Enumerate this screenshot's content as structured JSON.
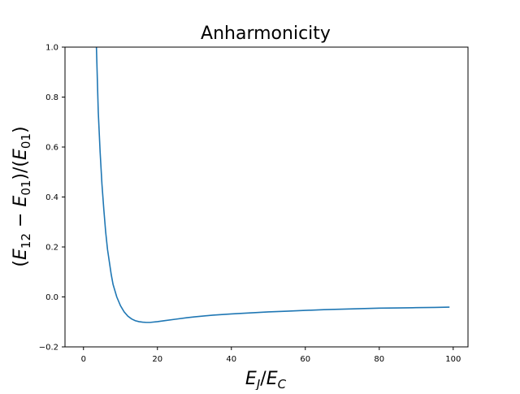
{
  "chart_data": {
    "type": "line",
    "title": "Anharmonicity",
    "xlabel": "E_J/E_C",
    "ylabel": "(E_12 − E_01)/(E_01)",
    "xlim": [
      -5,
      104
    ],
    "ylim": [
      -0.2,
      1.0
    ],
    "x_ticks": [
      0,
      20,
      40,
      60,
      80,
      100
    ],
    "y_ticks": [
      -0.2,
      0.0,
      0.2,
      0.4,
      0.6,
      0.8,
      1.0
    ],
    "x_tick_labels": [
      "0",
      "20",
      "40",
      "60",
      "80",
      "100"
    ],
    "y_tick_labels": [
      "−0.2",
      "0.0",
      "0.2",
      "0.4",
      "0.6",
      "0.8",
      "1.0"
    ],
    "grid": false,
    "line_color": "#1f77b4",
    "series": [
      {
        "x": [
          3.5,
          4,
          4.5,
          5,
          5.5,
          6,
          6.5,
          7,
          7.5,
          8,
          9,
          10,
          11,
          12,
          13,
          14,
          15,
          16,
          17,
          18,
          20,
          22,
          25,
          28,
          30,
          35,
          40,
          45,
          50,
          55,
          60,
          65,
          70,
          75,
          80,
          85,
          90,
          95,
          99
        ],
        "values": [
          1.0,
          0.74,
          0.58,
          0.45,
          0.35,
          0.26,
          0.19,
          0.14,
          0.09,
          0.05,
          0.0,
          -0.035,
          -0.06,
          -0.077,
          -0.088,
          -0.095,
          -0.099,
          -0.101,
          -0.102,
          -0.102,
          -0.099,
          -0.095,
          -0.089,
          -0.083,
          -0.08,
          -0.073,
          -0.068,
          -0.064,
          -0.06,
          -0.057,
          -0.054,
          -0.051,
          -0.049,
          -0.047,
          -0.045,
          -0.044,
          -0.043,
          -0.042,
          -0.041
        ]
      }
    ]
  }
}
